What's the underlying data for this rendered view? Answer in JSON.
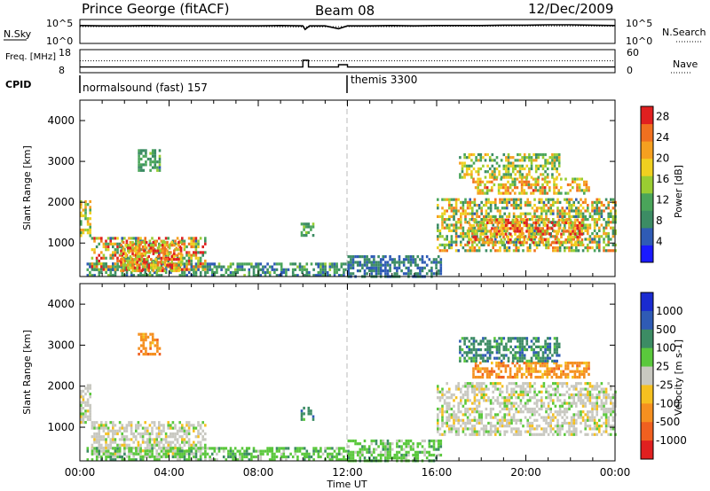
{
  "header": {
    "station": "Prince George (fitACF)",
    "beam": "Beam 08",
    "date": "12/Dec/2009"
  },
  "colors": {
    "power_scale": [
      "#1a1aff",
      "#2f5bb5",
      "#3c8c64",
      "#4aa55a",
      "#9acd32",
      "#f0d020",
      "#f5a020",
      "#f07020",
      "#e02020"
    ],
    "velocity_scale": [
      "#1a2bd0",
      "#2f5bb5",
      "#3c8c64",
      "#5ac83c",
      "#c8c8c0",
      "#f5c020",
      "#f59020",
      "#f06020",
      "#e02020"
    ]
  },
  "chart_data": [
    {
      "type": "line",
      "panel": "noise",
      "ylabel_left": "N.Sky",
      "ylabel_right": "N.Search",
      "left_ticks": [
        "10^5",
        "10^0"
      ],
      "right_ticks": [
        "10^5",
        "10^0"
      ],
      "series": [
        {
          "key": "sky",
          "style": "solid",
          "x": [
            0,
            1,
            2,
            3,
            4,
            5,
            6,
            7,
            8,
            9,
            10,
            10.1,
            10.3,
            11,
            11.6,
            12,
            13,
            14,
            15,
            16,
            17,
            18,
            19,
            20,
            21,
            22,
            23,
            24
          ],
          "y": [
            4.3,
            4.2,
            4.2,
            4.3,
            4.2,
            4.2,
            4.2,
            4.2,
            4.2,
            4.3,
            4.2,
            3.2,
            4.2,
            4.2,
            3.4,
            4.2,
            4.2,
            4.3,
            4.2,
            4.3,
            4.3,
            4.3,
            4.4,
            4.4,
            4.5,
            4.5,
            4.4,
            4.3
          ]
        },
        {
          "key": "search",
          "style": "dotted",
          "x": [
            0,
            2,
            4,
            6,
            8,
            10,
            12,
            14,
            16,
            18,
            20,
            22,
            24
          ],
          "y": [
            4.0,
            4.0,
            4.0,
            4.0,
            4.0,
            3.9,
            4.0,
            4.0,
            4.1,
            4.1,
            4.2,
            4.2,
            4.1
          ]
        }
      ]
    },
    {
      "type": "line",
      "panel": "frequency",
      "ylabel_left": "Freq. [MHz]",
      "ylabel_right": "Nave",
      "left_ticks": [
        "18",
        "8"
      ],
      "right_ticks": [
        "60",
        "0"
      ],
      "series": [
        {
          "key": "freq",
          "style": "solid",
          "x": [
            0,
            10.0,
            10.0,
            10.25,
            10.25,
            11.6,
            11.6,
            12.0,
            12.0,
            24
          ],
          "y": [
            10.2,
            10.2,
            14.0,
            14.0,
            10.2,
            10.2,
            11.5,
            11.5,
            10.2,
            10.2
          ]
        },
        {
          "key": "nave",
          "style": "dotted",
          "x": [
            0,
            24
          ],
          "y": [
            34,
            34
          ]
        }
      ]
    },
    {
      "type": "table",
      "panel": "cpid",
      "label": "CPID",
      "segments": [
        {
          "start": 0,
          "end": 12,
          "name": "normalsound (fast) 157"
        },
        {
          "start": 12,
          "end": 24,
          "name": "themis 3300"
        }
      ]
    },
    {
      "type": "heatmap",
      "panel": "power",
      "ylabel": "Slant Range [km]",
      "xlim": [
        0,
        24
      ],
      "ylim": [
        180,
        4500
      ],
      "yticks": [
        1000,
        2000,
        3000,
        4000
      ],
      "colorbar_label": "Power [dB]",
      "colorbar_ticks": [
        4,
        8,
        12,
        16,
        20,
        24,
        28
      ],
      "colorbar_range": [
        0,
        30
      ],
      "regions": [
        {
          "t0": 0.0,
          "t1": 0.45,
          "r0": 1150,
          "r1": 2050,
          "v0": 10,
          "v1": 22
        },
        {
          "t0": 0.3,
          "t1": 12.0,
          "r0": 180,
          "r1": 520,
          "v0": 4,
          "v1": 14
        },
        {
          "t0": 0.5,
          "t1": 5.6,
          "r0": 320,
          "r1": 1150,
          "v0": 6,
          "v1": 30
        },
        {
          "t0": 1.8,
          "t1": 4.5,
          "r0": 320,
          "r1": 1050,
          "v0": 14,
          "v1": 30
        },
        {
          "t0": 2.6,
          "t1": 3.6,
          "r0": 2750,
          "r1": 3300,
          "v0": 6,
          "v1": 14
        },
        {
          "t0": 9.9,
          "t1": 10.5,
          "r0": 1200,
          "r1": 1500,
          "v0": 8,
          "v1": 14
        },
        {
          "t0": 12.0,
          "t1": 16.2,
          "r0": 180,
          "r1": 700,
          "v0": 4,
          "v1": 10
        },
        {
          "t0": 16.0,
          "t1": 24.0,
          "r0": 800,
          "r1": 2100,
          "v0": 6,
          "v1": 26
        },
        {
          "t0": 17.4,
          "t1": 22.5,
          "r0": 1000,
          "r1": 1600,
          "v0": 14,
          "v1": 30
        },
        {
          "t0": 17.6,
          "t1": 22.8,
          "r0": 2200,
          "r1": 2600,
          "v0": 12,
          "v1": 28
        },
        {
          "t0": 17.0,
          "t1": 21.5,
          "r0": 2600,
          "r1": 3200,
          "v0": 8,
          "v1": 22
        }
      ]
    },
    {
      "type": "heatmap",
      "panel": "velocity",
      "ylabel": "Slant Range [km]",
      "xlabel": "Time UT",
      "xlim": [
        0,
        24
      ],
      "ylim": [
        180,
        4500
      ],
      "yticks": [
        1000,
        2000,
        3000,
        4000
      ],
      "xticks": [
        "00:00",
        "04:00",
        "08:00",
        "12:00",
        "16:00",
        "20:00",
        "00:00"
      ],
      "colorbar_label": "Velocity [m s-1]",
      "colorbar_ticks": [
        "1000",
        "500",
        "100",
        "25",
        "-25",
        "-100",
        "-500",
        "-1000"
      ],
      "regions": [
        {
          "t0": 0.0,
          "t1": 0.45,
          "r0": 1150,
          "r1": 2050,
          "c": 4
        },
        {
          "t0": 0.5,
          "t1": 5.6,
          "r0": 320,
          "r1": 1150,
          "c": 4
        },
        {
          "t0": 0.3,
          "t1": 12.0,
          "r0": 180,
          "r1": 520,
          "c": 3
        },
        {
          "t0": 2.6,
          "t1": 3.6,
          "r0": 2750,
          "r1": 3300,
          "c": 6
        },
        {
          "t0": 9.9,
          "t1": 10.5,
          "r0": 1200,
          "r1": 1500,
          "c": 2
        },
        {
          "t0": 12.0,
          "t1": 16.2,
          "r0": 180,
          "r1": 700,
          "c": 3
        },
        {
          "t0": 16.0,
          "t1": 24.0,
          "r0": 800,
          "r1": 2100,
          "c": 4
        },
        {
          "t0": 17.6,
          "t1": 22.8,
          "r0": 2200,
          "r1": 2600,
          "c": 6
        },
        {
          "t0": 17.0,
          "t1": 21.5,
          "r0": 2600,
          "r1": 3200,
          "c": 2
        }
      ]
    }
  ]
}
